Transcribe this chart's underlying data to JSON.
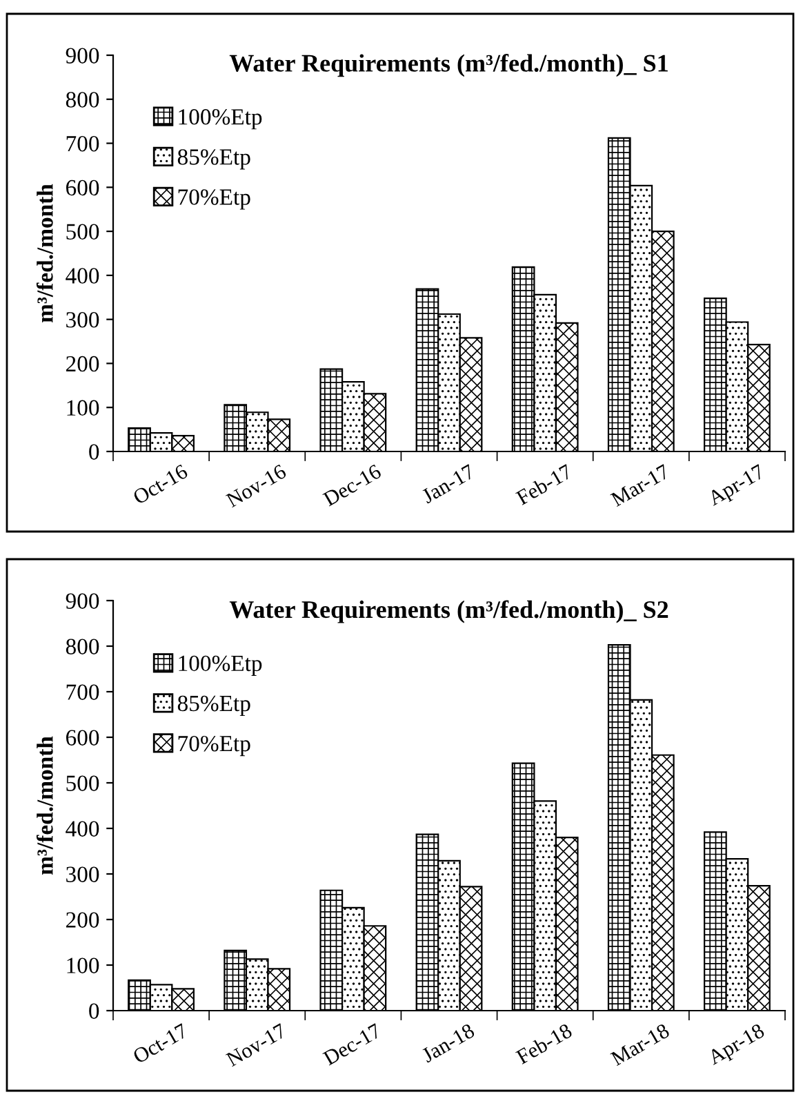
{
  "chart_data": [
    {
      "type": "bar",
      "title": "Water Requirements (m³/fed./month)_ S1",
      "ylabel": "m³/fed./month",
      "categories": [
        "Oct-16",
        "Nov-16",
        "Dec-16",
        "Jan-17",
        "Feb-17",
        "Mar-17",
        "Apr-17"
      ],
      "series": [
        {
          "name": "100%Etp",
          "color": "#000000",
          "values": [
            53,
            106,
            187,
            369,
            419,
            712,
            348
          ]
        },
        {
          "name": "85%Etp",
          "color": "#000000",
          "values": [
            42,
            89,
            158,
            312,
            356,
            604,
            294
          ]
        },
        {
          "name": "70%Etp",
          "color": "#000000",
          "values": [
            36,
            73,
            131,
            258,
            292,
            500,
            243
          ]
        }
      ],
      "ylim": [
        0,
        900
      ],
      "yticks": [
        0,
        100,
        200,
        300,
        400,
        500,
        600,
        700,
        800,
        900
      ],
      "grid": false,
      "legend": "top left"
    },
    {
      "type": "bar",
      "title": "Water Requirements (m³/fed./month)_ S2",
      "ylabel": "m³/fed./month",
      "categories": [
        "Oct-17",
        "Nov-17",
        "Dec-17",
        "Jan-18",
        "Feb-18",
        "Mar-18",
        "Apr-18"
      ],
      "series": [
        {
          "name": "100%Etp",
          "color": "#000000",
          "values": [
            67,
            132,
            264,
            387,
            543,
            803,
            392
          ]
        },
        {
          "name": "85%Etp",
          "color": "#000000",
          "values": [
            57,
            113,
            226,
            329,
            460,
            682,
            333
          ]
        },
        {
          "name": "70%Etp",
          "color": "#000000",
          "values": [
            48,
            92,
            186,
            272,
            380,
            561,
            274
          ]
        }
      ],
      "ylim": [
        0,
        900
      ],
      "yticks": [
        0,
        100,
        200,
        300,
        400,
        500,
        600,
        700,
        800,
        900
      ],
      "grid": false,
      "legend": "top left"
    }
  ]
}
